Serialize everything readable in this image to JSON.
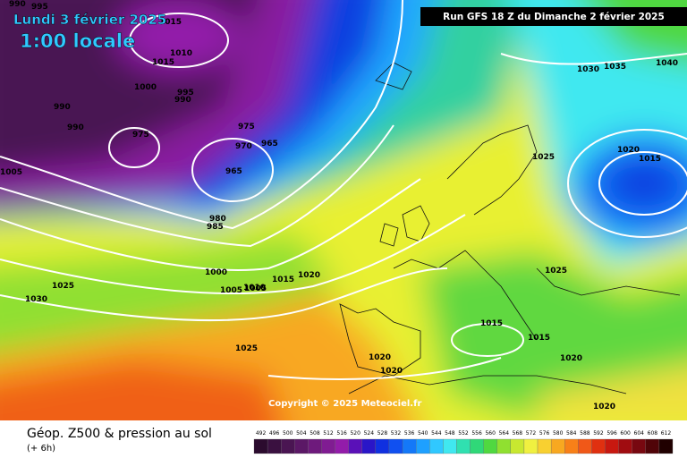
{
  "header": {
    "date": "Lundi 3 février 2025",
    "time": "1:00 locale",
    "run": "Run GFS 18 Z du Dimanche 2 février 2025",
    "copyright": "Copyright © 2025 Meteociel.fr"
  },
  "footer": {
    "title": "Géop. Z500 & pression au sol",
    "lead": "(+ 6h)"
  },
  "colorbar": {
    "values": [
      492,
      496,
      500,
      504,
      508,
      512,
      516,
      520,
      524,
      528,
      532,
      536,
      540,
      544,
      548,
      552,
      556,
      560,
      564,
      568,
      572,
      576,
      580,
      584,
      588,
      592,
      596,
      600,
      604,
      608,
      612
    ],
    "colors": [
      "#2b0b2e",
      "#3a1040",
      "#4a1552",
      "#5b1866",
      "#6e1a7c",
      "#801c92",
      "#931caa",
      "#5a10b8",
      "#2a16c8",
      "#1030e0",
      "#1050f0",
      "#1478f8",
      "#1ea0ff",
      "#30c8ff",
      "#40e8f0",
      "#30e0b0",
      "#30d878",
      "#50d840",
      "#90e030",
      "#c8e830",
      "#f0f040",
      "#f8d030",
      "#f8a820",
      "#f88018",
      "#f05818",
      "#e03010",
      "#c81810",
      "#a00c10",
      "#780810",
      "#500408",
      "#200000"
    ]
  },
  "isobars": [
    "990",
    "995",
    "1005",
    "1015",
    "1010",
    "1015",
    "1000",
    "995",
    "990",
    "990",
    "990",
    "975",
    "975",
    "970",
    "965",
    "965",
    "980",
    "985",
    "1005",
    "1025",
    "1030",
    "1000",
    "1005",
    "1010",
    "1015",
    "1020",
    "1025",
    "1030",
    "1035",
    "1040",
    "1025",
    "1020",
    "1015",
    "1025",
    "1015",
    "1015",
    "1020",
    "1020",
    "1020",
    "1020"
  ]
}
